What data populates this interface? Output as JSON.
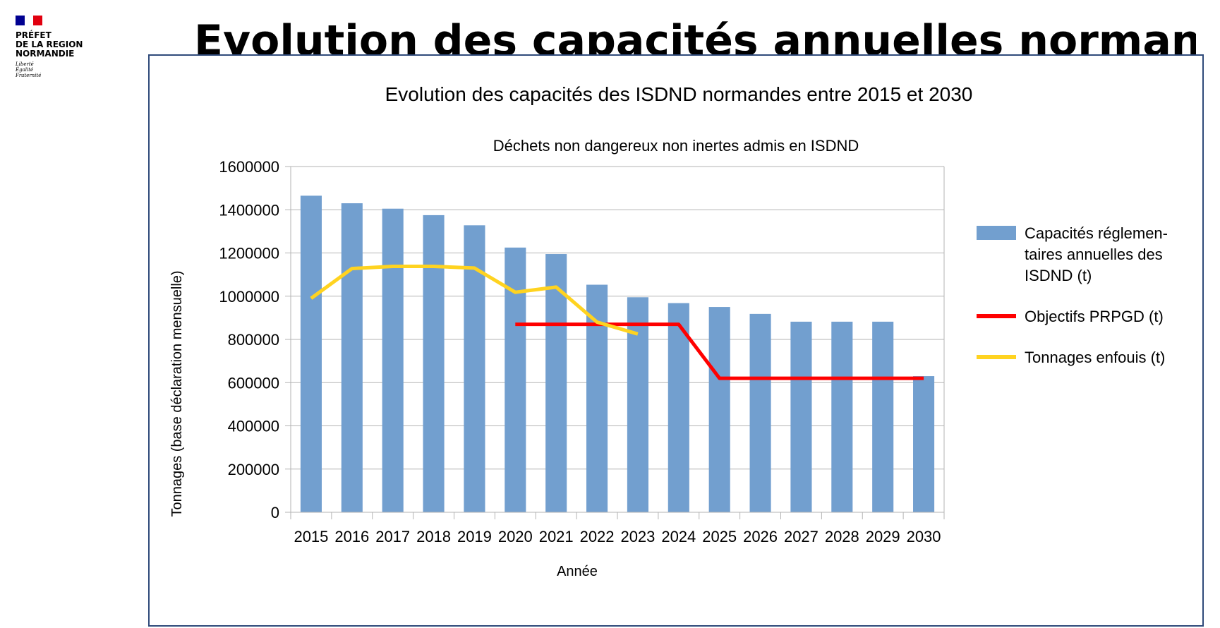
{
  "logo": {
    "flag_colors": [
      "#000091",
      "#ffffff",
      "#e1000f"
    ],
    "prefet_lines": [
      "PRÉFET",
      "DE LA REGION",
      "NORMANDIE"
    ],
    "motto_lines": [
      "Liberté",
      "Égalité",
      "Fraternité"
    ]
  },
  "slide_title": "Evolution des capacités annuelles normandes",
  "chart_data": {
    "type": "bar",
    "title": "Evolution des capacités des ISDND normandes entre 2015 et 2030",
    "subtitle": "Déchets non dangereux non inertes admis en ISDND",
    "xlabel": "Année",
    "ylabel": "Tonnages (base déclaration mensuelle)",
    "ylim": [
      0,
      1600000
    ],
    "yticks": [
      0,
      200000,
      400000,
      600000,
      800000,
      1000000,
      1200000,
      1400000,
      1600000
    ],
    "grid": true,
    "legend_position": "right",
    "categories": [
      "2015",
      "2016",
      "2017",
      "2018",
      "2019",
      "2020",
      "2021",
      "2022",
      "2023",
      "2024",
      "2025",
      "2026",
      "2027",
      "2028",
      "2029",
      "2030"
    ],
    "series": [
      {
        "name": "Capacités réglementaires annuelles des ISDND (t)",
        "legend_lines": [
          "Capacités réglemen-",
          "taires annuelles des",
          "ISDND (t)"
        ],
        "kind": "bar",
        "color": "#729fcf",
        "values": [
          1465000,
          1430000,
          1405000,
          1375000,
          1328000,
          1225000,
          1195000,
          1053000,
          995000,
          968000,
          950000,
          918000,
          882000,
          882000,
          882000,
          630000
        ]
      },
      {
        "name": "Objectifs PRPGD (t)",
        "legend_lines": [
          "Objectifs PRPGD (t)"
        ],
        "kind": "line",
        "color": "#ff0000",
        "values": [
          null,
          null,
          null,
          null,
          null,
          870000,
          870000,
          870000,
          870000,
          870000,
          620000,
          620000,
          620000,
          620000,
          620000,
          620000
        ]
      },
      {
        "name": "Tonnages enfouis (t)",
        "legend_lines": [
          "Tonnages enfouis (t)"
        ],
        "kind": "line",
        "color": "#ffd320",
        "values": [
          990000,
          1128000,
          1138000,
          1138000,
          1130000,
          1018000,
          1042000,
          880000,
          825000,
          null,
          null,
          null,
          null,
          null,
          null,
          null
        ]
      }
    ]
  }
}
